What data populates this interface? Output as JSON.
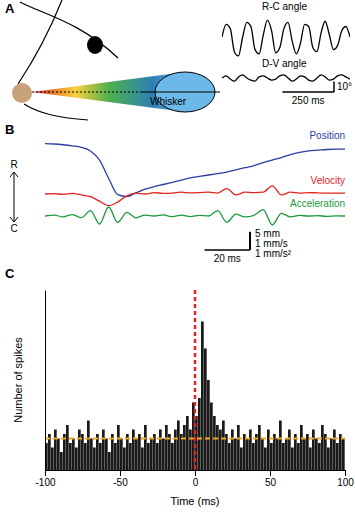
{
  "chart_data": [
    {
      "type": "line",
      "title": "A",
      "annotations": [
        "Whisker"
      ],
      "x": [
        0,
        20,
        40,
        60,
        80,
        100,
        120,
        140,
        160,
        180,
        200,
        220,
        240,
        260,
        280,
        300,
        320,
        340,
        360,
        380,
        400,
        420,
        440,
        460,
        480,
        500,
        520,
        540,
        560,
        580,
        600,
        620
      ],
      "series": [
        {
          "name": "R-C angle",
          "color": "#000000",
          "values": [
            0,
            12,
            8,
            -14,
            -18,
            0,
            14,
            10,
            -12,
            -16,
            2,
            16,
            6,
            -15,
            -10,
            8,
            14,
            -4,
            -16,
            -6,
            12,
            10,
            -10,
            -14,
            4,
            15,
            2,
            -12,
            -8,
            6,
            10,
            0
          ]
        },
        {
          "name": "D-V angle",
          "color": "#000000",
          "values": [
            0,
            2,
            -1,
            -3,
            1,
            3,
            0,
            -2,
            -3,
            1,
            2,
            0,
            -2,
            -1,
            2,
            3,
            0,
            -3,
            -1,
            2,
            1,
            -2,
            -3,
            0,
            3,
            1,
            -2,
            -1,
            2,
            3,
            1,
            -1
          ]
        }
      ],
      "xlim": [
        0,
        620
      ],
      "ylim": [
        -20,
        20
      ],
      "tick_labels": false,
      "scale_bar": {
        "x": 250,
        "x_label": "250 ms",
        "y": 10,
        "y_label": "10°"
      }
    },
    {
      "type": "line",
      "title": "B",
      "annotations": [
        "R",
        "C"
      ],
      "x": [
        0,
        4,
        8,
        12,
        16,
        20,
        24,
        28,
        32,
        36,
        40,
        44,
        48,
        52,
        56,
        60,
        64,
        68,
        72,
        76,
        80,
        84,
        88,
        92,
        96,
        100,
        104,
        108,
        112,
        116,
        120,
        124,
        128,
        132
      ],
      "xlim": [
        0,
        132
      ],
      "tick_labels": false,
      "scale_bar": {
        "x": 20,
        "x_label": "20 ms"
      },
      "series": [
        {
          "name": "Position",
          "color": "#2a3fa3",
          "ylim": [
            -16,
            1
          ],
          "scale_bar": {
            "y": 5,
            "y_label": "5 mm"
          },
          "values": [
            0,
            -0.1,
            -0.3,
            -0.6,
            -1,
            -2,
            -4.5,
            -9.5,
            -14,
            -14.5,
            -13.5,
            -12.5,
            -11.8,
            -11.2,
            -10.6,
            -10,
            -9.4,
            -9,
            -8.6,
            -8.2,
            -7.8,
            -7.2,
            -6.6,
            -6,
            -5.2,
            -4.5,
            -3.8,
            -3,
            -2.4,
            -2,
            -1.8,
            -1.6,
            -1.5,
            -1.5
          ]
        },
        {
          "name": "Velocity",
          "color": "#e0261b",
          "ylim": [
            -1,
            1
          ],
          "scale_bar": {
            "y": 1,
            "y_label": "1 mm/s"
          },
          "values": [
            0,
            0.02,
            -0.02,
            0.03,
            -0.05,
            -0.15,
            -0.4,
            -0.65,
            -0.45,
            -0.1,
            0.05,
            0,
            0.08,
            0.03,
            0.05,
            0.1,
            0.06,
            0.08,
            0.1,
            0.05,
            0.3,
            -0.05,
            0.1,
            0.08,
            0.1,
            0.45,
            -0.05,
            0.1,
            0.05,
            0.08,
            0.06,
            0.05,
            0.05,
            0.05
          ]
        },
        {
          "name": "Acceleration",
          "color": "#1d9a3c",
          "ylim": [
            -1,
            1
          ],
          "scale_bar": {
            "y": 1,
            "y_label": "1 mm/s²"
          },
          "values": [
            0,
            0.05,
            -0.05,
            0.08,
            -0.1,
            0.3,
            -0.45,
            0.5,
            -0.35,
            0.2,
            -0.1,
            0.05,
            0,
            0.06,
            -0.04,
            0.05,
            -0.03,
            0.04,
            0,
            0.3,
            -0.35,
            0.1,
            -0.05,
            0.04,
            0.35,
            -0.5,
            0.15,
            -0.05,
            0.03,
            0,
            0.02,
            -0.02,
            0.01,
            0
          ]
        }
      ]
    },
    {
      "type": "histogram",
      "title": "C",
      "bins": [
        -100,
        -98,
        -96,
        -94,
        -92,
        -90,
        -88,
        -86,
        -84,
        -82,
        -80,
        -78,
        -76,
        -74,
        -72,
        -70,
        -68,
        -66,
        -64,
        -62,
        -60,
        -58,
        -56,
        -54,
        -52,
        -50,
        -48,
        -46,
        -44,
        -42,
        -40,
        -38,
        -36,
        -34,
        -32,
        -30,
        -28,
        -26,
        -24,
        -22,
        -20,
        -18,
        -16,
        -14,
        -12,
        -10,
        -8,
        -6,
        -4,
        -2,
        0,
        2,
        4,
        6,
        8,
        10,
        12,
        14,
        16,
        18,
        20,
        22,
        24,
        26,
        28,
        30,
        32,
        34,
        36,
        38,
        40,
        42,
        44,
        46,
        48,
        50,
        52,
        54,
        56,
        58,
        60,
        62,
        64,
        66,
        68,
        70,
        72,
        74,
        76,
        78,
        80,
        82,
        84,
        86,
        88,
        90,
        92,
        94,
        96,
        98,
        100
      ],
      "values": [
        6,
        8,
        5,
        9,
        7,
        4,
        8,
        10,
        6,
        7,
        5,
        9,
        8,
        6,
        11,
        7,
        5,
        8,
        6,
        9,
        7,
        4,
        8,
        6,
        10,
        7,
        5,
        8,
        6,
        9,
        7,
        8,
        5,
        10,
        6,
        7,
        8,
        6,
        9,
        7,
        10,
        8,
        6,
        9,
        11,
        8,
        10,
        12,
        9,
        15,
        12,
        16,
        33,
        27,
        20,
        15,
        12,
        10,
        9,
        11,
        8,
        6,
        9,
        7,
        10,
        5,
        8,
        7,
        9,
        6,
        8,
        10,
        7,
        5,
        9,
        6,
        8,
        7,
        11,
        6,
        7,
        9,
        5,
        8,
        6,
        10,
        7,
        8,
        5,
        9,
        7,
        6,
        10,
        8,
        5,
        7,
        9,
        6,
        8,
        7
      ],
      "color": "#1a1a1a",
      "xlim": [
        -100,
        100
      ],
      "xticks": [
        -100,
        -50,
        0,
        50,
        100
      ],
      "ylim": [
        0,
        40
      ],
      "yticks": [],
      "xlabel": "Time (ms)",
      "ylabel": "Number of spikes",
      "tick_labels": "x",
      "stimulus_time": 0,
      "mean_rate": 7
    }
  ]
}
